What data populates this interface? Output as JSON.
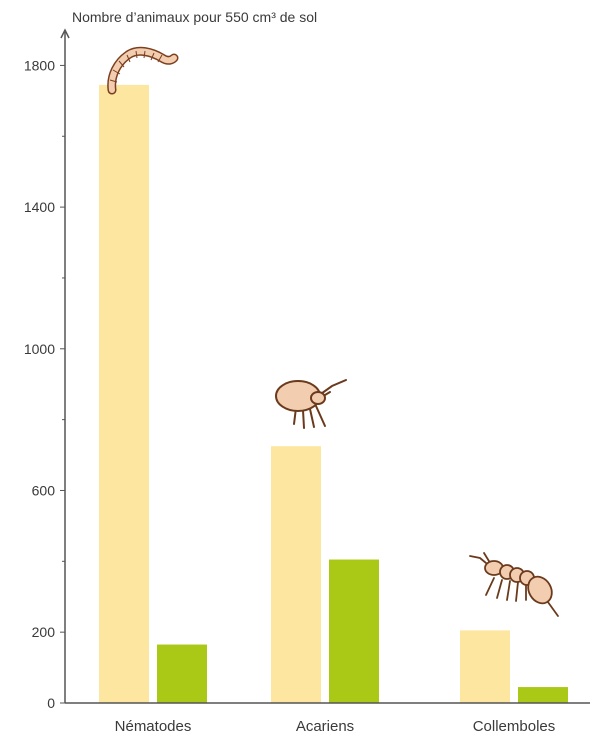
{
  "chart_data": {
    "type": "bar",
    "ylabel": "Nombre d’animaux pour 550 cm³ de sol",
    "categories": [
      "Nématodes",
      "Acariens",
      "Collemboles"
    ],
    "series": [
      {
        "values": [
          1745,
          725,
          205
        ]
      },
      {
        "values": [
          165,
          405,
          45
        ]
      }
    ],
    "ylim": [
      0,
      1900
    ],
    "yticks": [
      "0",
      "200",
      "600",
      "1000",
      "1400",
      "1800"
    ],
    "grid": false,
    "colors": [
      "#fde69f",
      "#a9c916"
    ]
  },
  "icons": {
    "nematodes": "worm-icon",
    "acariens": "mite-icon",
    "collemboles": "springtail-icon"
  }
}
